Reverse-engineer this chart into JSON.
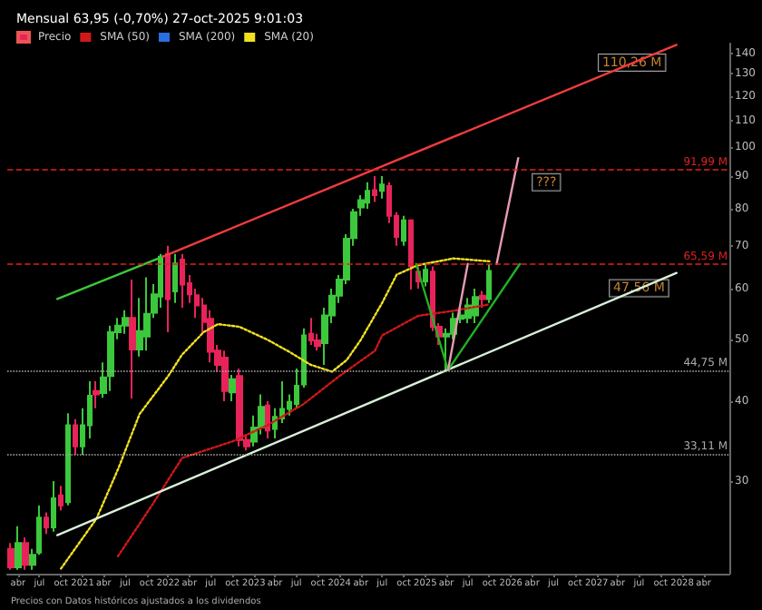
{
  "chart_data": {
    "type": "candlestick",
    "title": "Mensual 63,95 (-0,70%) 27-oct-2025 9:01:03",
    "log": "y",
    "legend": "top left",
    "marker": "none",
    "xlim": [
      "2020-02-15",
      "2028-07-20"
    ],
    "xticks": [
      {
        "value": "2020-04",
        "label": "abr"
      },
      {
        "value": "2020-07",
        "label": "jul"
      },
      {
        "value": "2020-10",
        "label": "oct"
      },
      {
        "value": "2021-01",
        "label": "2021"
      },
      {
        "value": "2021-04",
        "label": "abr"
      },
      {
        "value": "2021-07",
        "label": "jul"
      },
      {
        "value": "2021-10",
        "label": "oct"
      },
      {
        "value": "2022-01",
        "label": "2022"
      },
      {
        "value": "2022-04",
        "label": "abr"
      },
      {
        "value": "2022-07",
        "label": "jul"
      },
      {
        "value": "2022-10",
        "label": "oct"
      },
      {
        "value": "2023-01",
        "label": "2023"
      },
      {
        "value": "2023-04",
        "label": "abr"
      },
      {
        "value": "2023-07",
        "label": "jul"
      },
      {
        "value": "2023-10",
        "label": "oct"
      },
      {
        "value": "2024-01",
        "label": "2024"
      },
      {
        "value": "2024-04",
        "label": "abr"
      },
      {
        "value": "2024-07",
        "label": "jul"
      },
      {
        "value": "2024-10",
        "label": "oct"
      },
      {
        "value": "2025-01",
        "label": "2025"
      },
      {
        "value": "2025-04",
        "label": "abr"
      },
      {
        "value": "2025-07",
        "label": "jul"
      },
      {
        "value": "2025-10",
        "label": "oct"
      },
      {
        "value": "2026-01",
        "label": "2026"
      },
      {
        "value": "2026-04",
        "label": "abr"
      },
      {
        "value": "2026-07",
        "label": "jul"
      },
      {
        "value": "2026-10",
        "label": "oct"
      },
      {
        "value": "2027-01",
        "label": "2027"
      },
      {
        "value": "2027-04",
        "label": "abr"
      },
      {
        "value": "2027-07",
        "label": "jul"
      },
      {
        "value": "2027-10",
        "label": "oct"
      },
      {
        "value": "2028-01",
        "label": "2028"
      },
      {
        "value": "2028-04",
        "label": "abr"
      }
    ],
    "ylim": [
      21.5,
      145
    ],
    "yticks": [
      30,
      40,
      50,
      60,
      70,
      80,
      90,
      100,
      110,
      120,
      130,
      140
    ],
    "series": [
      {
        "name": "Precio",
        "x": [
          "2020-03",
          "2020-04",
          "2020-05",
          "2020-06",
          "2020-07",
          "2020-08",
          "2020-09",
          "2020-10",
          "2020-11",
          "2020-12",
          "2021-01",
          "2021-02",
          "2021-03",
          "2021-04",
          "2021-05",
          "2021-06",
          "2021-07",
          "2021-08",
          "2021-09",
          "2021-10",
          "2021-11",
          "2021-12",
          "2022-01",
          "2022-02",
          "2022-03",
          "2022-04",
          "2022-05",
          "2022-06",
          "2022-07",
          "2022-08",
          "2022-09",
          "2022-10",
          "2022-11",
          "2022-12",
          "2023-01",
          "2023-02",
          "2023-03",
          "2023-04",
          "2023-05",
          "2023-06",
          "2023-07",
          "2023-08",
          "2023-09",
          "2023-10",
          "2023-11",
          "2023-12",
          "2024-01",
          "2024-02",
          "2024-03",
          "2024-04",
          "2024-05",
          "2024-06",
          "2024-07",
          "2024-08",
          "2024-09",
          "2024-10",
          "2024-11",
          "2024-12",
          "2025-01",
          "2025-02",
          "2025-03",
          "2025-04",
          "2025-05",
          "2025-06",
          "2025-07",
          "2025-08",
          "2025-09",
          "2025-10"
        ],
        "ohlc": [
          [
            23.5,
            24,
            21.8,
            22
          ],
          [
            22,
            25.5,
            21.8,
            24
          ],
          [
            24,
            24.5,
            21.8,
            22.2
          ],
          [
            22.2,
            23.5,
            21.8,
            23
          ],
          [
            23.2,
            27.5,
            23,
            26.3
          ],
          [
            26.3,
            26.8,
            24.8,
            25.4
          ],
          [
            25.4,
            30,
            25,
            28.2
          ],
          [
            28.5,
            29.5,
            27,
            27.5
          ],
          [
            27.8,
            38.3,
            27.5,
            36.7
          ],
          [
            36.7,
            37.5,
            33,
            34
          ],
          [
            34,
            39,
            33,
            36.7
          ],
          [
            36.7,
            43,
            35,
            40.8
          ],
          [
            41.5,
            43,
            39,
            41
          ],
          [
            41.2,
            46,
            40.5,
            43.6
          ],
          [
            43.8,
            52.5,
            41.5,
            51.3
          ],
          [
            51.3,
            54,
            50,
            52.5
          ],
          [
            52.5,
            55.5,
            51,
            54
          ],
          [
            54,
            62,
            40.4,
            48.2
          ],
          [
            48.2,
            58,
            47,
            51.5
          ],
          [
            50.5,
            62.5,
            48,
            54.8
          ],
          [
            55,
            61,
            54,
            58.8
          ],
          [
            58.3,
            68,
            56,
            67.3
          ],
          [
            68,
            70,
            51.3,
            57.8
          ],
          [
            59.4,
            68,
            57,
            65.7
          ],
          [
            66.6,
            68,
            56,
            60.9
          ],
          [
            61.2,
            63,
            57,
            58.8
          ],
          [
            58.6,
            60,
            54,
            56.5
          ],
          [
            56.5,
            58,
            51,
            53.2
          ],
          [
            53.8,
            55.5,
            46,
            47.8
          ],
          [
            48,
            49,
            44.5,
            45.6
          ],
          [
            46.8,
            48,
            40,
            41.5
          ],
          [
            41.3,
            44,
            40,
            43.3
          ],
          [
            43.8,
            45,
            34,
            34.8
          ],
          [
            34.8,
            35.5,
            33.5,
            34
          ],
          [
            34.6,
            38,
            34,
            36.4
          ],
          [
            36.4,
            41,
            35.5,
            39.2
          ],
          [
            39.4,
            40,
            35,
            36
          ],
          [
            36.2,
            39,
            35,
            37.8
          ],
          [
            37.6,
            43,
            37,
            38.9
          ],
          [
            38.9,
            41,
            38,
            39.9
          ],
          [
            39.6,
            45,
            39,
            42.3
          ],
          [
            42.5,
            52,
            42,
            50.7
          ],
          [
            51,
            54,
            49,
            49.8
          ],
          [
            49.8,
            51,
            48,
            48.8
          ],
          [
            49.3,
            56,
            45.6,
            54.5
          ],
          [
            54.5,
            60,
            53,
            58.5
          ],
          [
            58.5,
            63,
            57,
            62
          ],
          [
            62,
            73,
            61,
            71.8
          ],
          [
            72,
            80,
            70,
            79
          ],
          [
            80.4,
            84,
            78,
            82.5
          ],
          [
            81.8,
            88,
            80,
            85.3
          ],
          [
            85.5,
            90,
            82,
            84
          ],
          [
            85.3,
            90,
            83,
            87.3
          ],
          [
            86.8,
            88,
            76,
            78
          ],
          [
            78,
            79,
            70,
            72.3
          ],
          [
            71.3,
            78,
            70,
            76.7
          ],
          [
            76.7,
            77,
            59.8,
            65
          ],
          [
            63.8,
            65,
            60,
            61.6
          ],
          [
            61.6,
            65.5,
            60.5,
            64.2
          ],
          [
            63.8,
            65,
            51.5,
            52.3
          ],
          [
            52.3,
            53,
            49,
            50.5
          ],
          [
            50.5,
            52,
            44.8,
            51
          ],
          [
            51,
            55,
            50,
            53.8
          ],
          [
            53.8,
            56,
            53,
            54.5
          ],
          [
            54,
            58,
            53,
            56.5
          ],
          [
            54.5,
            60,
            53,
            58.2
          ],
          [
            58.5,
            59.5,
            56,
            57.8
          ],
          [
            57.8,
            65.5,
            57,
            63.95
          ]
        ],
        "colors": [
          "#e8235a",
          "#3cc83c",
          "#e8235a",
          "#3cc83c",
          "#3cc83c",
          "#e8235a",
          "#3cc83c",
          "#e8235a",
          "#3cc83c",
          "#e8235a",
          "#3cc83c",
          "#3cc83c",
          "#e8235a",
          "#3cc83c",
          "#3cc83c",
          "#3cc83c",
          "#3cc83c",
          "#e8235a",
          "#3cc83c",
          "#3cc83c",
          "#3cc83c",
          "#3cc83c",
          "#e8235a",
          "#3cc83c",
          "#e8235a",
          "#e8235a",
          "#e8235a",
          "#e8235a",
          "#e8235a",
          "#e8235a",
          "#e8235a",
          "#3cc83c",
          "#e8235a",
          "#e8235a",
          "#3cc83c",
          "#3cc83c",
          "#e8235a",
          "#3cc83c",
          "#3cc83c",
          "#3cc83c",
          "#3cc83c",
          "#3cc83c",
          "#e8235a",
          "#e8235a",
          "#3cc83c",
          "#3cc83c",
          "#3cc83c",
          "#3cc83c",
          "#3cc83c",
          "#3cc83c",
          "#3cc83c",
          "#e8235a",
          "#3cc83c",
          "#e8235a",
          "#e8235a",
          "#3cc83c",
          "#e8235a",
          "#e8235a",
          "#3cc83c",
          "#e8235a",
          "#e8235a",
          "#3cc83c",
          "#3cc83c",
          "#3cc83c",
          "#3cc83c",
          "#3cc83c",
          "#e8235a",
          "#3cc83c"
        ]
      },
      {
        "type": "line",
        "name": "SMA (50)",
        "color": "#d01818",
        "line_style": "dotted",
        "x": [
          "2021-06",
          "2021-11",
          "2022-03",
          "2022-10",
          "2023-03",
          "2023-08",
          "2024-01",
          "2024-06",
          "2024-07",
          "2024-12",
          "2025-05",
          "2025-10"
        ],
        "values": [
          22.9,
          27.8,
          32.6,
          34.6,
          36.7,
          39.6,
          43.8,
          48,
          50.7,
          54.4,
          55.4,
          56.7
        ]
      },
      {
        "type": "line",
        "name": "SMA (200)",
        "color": "#2a6fe0",
        "line_style": "dotted"
      },
      {
        "type": "line",
        "name": "SMA (20)",
        "color": "#f0e020",
        "line_style": "dotted",
        "x": [
          "2020-10",
          "2021-03",
          "2021-06",
          "2021-09",
          "2022-01",
          "2022-03",
          "2022-06",
          "2022-08",
          "2022-11",
          "2023-03",
          "2023-06",
          "2023-09",
          "2023-12",
          "2024-02",
          "2024-04",
          "2024-07",
          "2024-09",
          "2024-12",
          "2025-05",
          "2025-10"
        ],
        "values": [
          21.9,
          26.2,
          31.3,
          38.2,
          43.8,
          47.3,
          51.3,
          52.8,
          52.3,
          49.9,
          47.8,
          45.6,
          44.5,
          46.4,
          49.9,
          57,
          63.1,
          65.3,
          66.9,
          66.2
        ]
      },
      {
        "type": "line",
        "color": "#3cc83c",
        "line_style": "solid",
        "x": [
          "2020-09-15",
          "2021-12-08"
        ],
        "values": [
          57.8,
          67.3
        ]
      },
      {
        "type": "line",
        "color": "#f03c3c",
        "line_style": "solid",
        "x": [
          "2021-12-08",
          "2027-12-08"
        ],
        "values": [
          67.3,
          144.3
        ]
      },
      {
        "type": "line",
        "color": "#d8f0d8",
        "line_style": "solid",
        "x": [
          "2020-09-15",
          "2027-12-08"
        ],
        "values": [
          24.7,
          63.5
        ]
      },
      {
        "type": "line",
        "color": "#22b022",
        "line_style": "solid",
        "x": [
          "2024-11-23",
          "2025-04-08",
          "2026-02-08"
        ],
        "values": [
          65.59,
          44.75,
          65.59
        ]
      },
      {
        "type": "line",
        "color": "#e89ab0",
        "line_style": "solid",
        "x": [
          "2025-04-08",
          "2025-07-01"
        ],
        "values": [
          44.75,
          65.59
        ]
      },
      {
        "type": "line",
        "color": "#e89ab0",
        "line_style": "solid",
        "x": [
          "2025-11-01",
          "2026-02-01"
        ],
        "values": [
          65.59,
          96
        ]
      }
    ],
    "ref_lines": [
      {
        "axis": "y",
        "value": 91.99,
        "label": "91,99 M",
        "color": "#e02020",
        "line_style": "dashed"
      },
      {
        "axis": "y",
        "value": 65.59,
        "label": "65,59 M",
        "color": "#e02020",
        "line_style": "dashed"
      },
      {
        "axis": "y",
        "value": 44.75,
        "label": "44,75 M",
        "color": "#aaaaaa",
        "line_style": "dotted"
      },
      {
        "axis": "y",
        "value": 33.11,
        "label": "33,11 M",
        "color": "#aaaaaa",
        "line_style": "dotted"
      }
    ],
    "annotations": [
      {
        "text": "110,26 M",
        "x": "2027-06",
        "y": 135.4
      },
      {
        "text": "47,56 M",
        "x": "2027-07",
        "y": 60.1
      },
      {
        "text": "???",
        "x": "2026-06",
        "y": 88
      },
      "Precios con Datos históricos ajustados a los dividendos"
    ]
  }
}
